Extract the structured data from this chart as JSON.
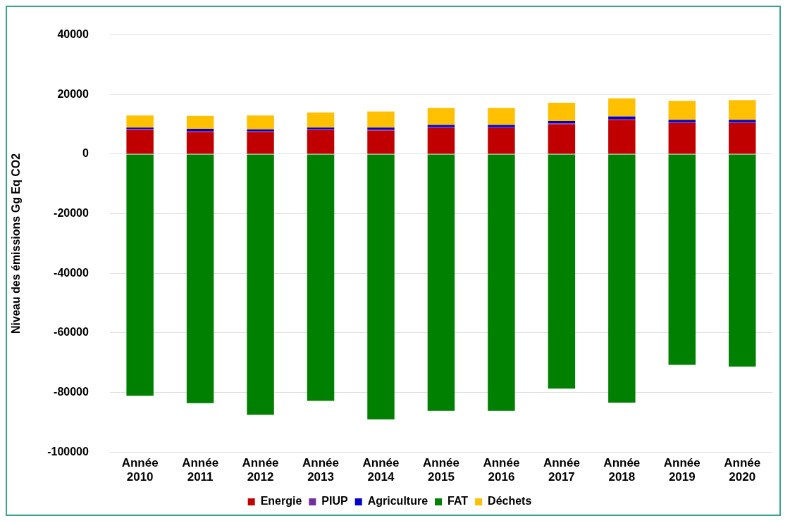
{
  "chart_data": {
    "type": "bar",
    "stacked": true,
    "ylabel": "Niveau des émissions Gg Eq CO2",
    "categories": [
      "Année 2010",
      "Année 2011",
      "Année 2012",
      "Année 2013",
      "Année 2014",
      "Année 2015",
      "Année 2016",
      "Année 2017",
      "Année 2018",
      "Année 2019",
      "Année 2020"
    ],
    "series": [
      {
        "name": "Energie",
        "color": "#c00000",
        "values": [
          8100,
          7400,
          7400,
          8100,
          7900,
          8700,
          8700,
          10000,
          11500,
          10400,
          10400
        ]
      },
      {
        "name": "PIUP",
        "color": "#7030a0",
        "values": [
          300,
          400,
          200,
          200,
          300,
          400,
          300,
          300,
          300,
          300,
          300
        ]
      },
      {
        "name": "Agriculture",
        "color": "#0000cc",
        "values": [
          500,
          700,
          700,
          600,
          700,
          700,
          800,
          800,
          800,
          800,
          800
        ]
      },
      {
        "name": "FAT",
        "color": "#008000",
        "values": [
          -81100,
          -83600,
          -87500,
          -82800,
          -89000,
          -86200,
          -86200,
          -78700,
          -83400,
          -70700,
          -71300
        ]
      },
      {
        "name": "Déchets",
        "color": "#ffc000",
        "values": [
          4100,
          4300,
          4700,
          5100,
          5400,
          5700,
          5700,
          6100,
          6100,
          6400,
          6600
        ]
      }
    ],
    "ylim": [
      -100000,
      40000
    ],
    "yticks": [
      -100000,
      -80000,
      -60000,
      -40000,
      -20000,
      0,
      20000,
      40000
    ],
    "grid": "y",
    "legend": "bottom"
  }
}
